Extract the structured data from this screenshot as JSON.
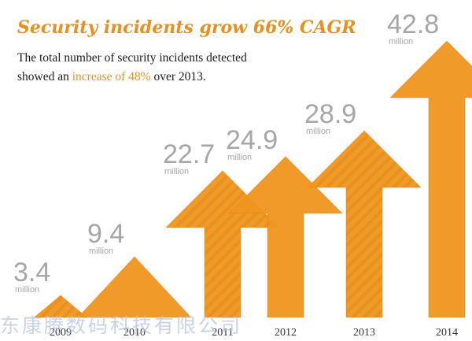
{
  "header": {
    "title": "Security incidents grow 66% CAGR",
    "subtitle_line1": "The total number of security incidents detected",
    "subtitle_line2_pre": "showed an ",
    "subtitle_line2_highlight": "increase of 48%",
    "subtitle_line2_post": " over 2013."
  },
  "watermark": "东康腾数码科技有限公司",
  "colors": {
    "accent": "#f0961e",
    "accent_dark": "#e07d10",
    "value_text": "#a6a6a6"
  },
  "chart_data": {
    "type": "bar",
    "categories": [
      "2009",
      "2010",
      "2011",
      "2012",
      "2013",
      "2014"
    ],
    "values": [
      3.4,
      9.4,
      22.7,
      24.9,
      28.9,
      42.8
    ],
    "value_labels": [
      "3.4",
      "9.4",
      "22.7",
      "24.9",
      "28.9",
      "42.8"
    ],
    "unit_label": "million",
    "title": "Security incidents grow 66% CAGR",
    "xlabel": "",
    "ylabel": "",
    "grid": false,
    "legend": "none"
  }
}
